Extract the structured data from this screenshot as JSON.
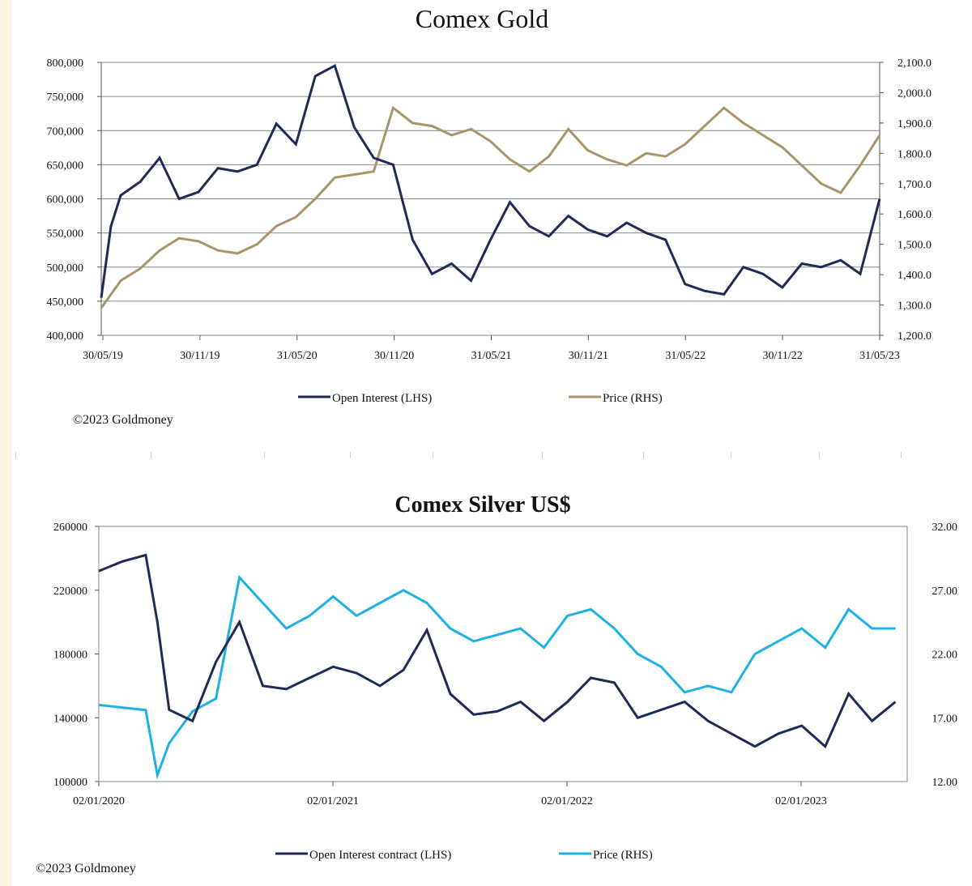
{
  "chart_data": [
    {
      "type": "line",
      "title": "Comex Gold",
      "x_ticks": [
        "30/05/19",
        "30/11/19",
        "31/05/20",
        "30/11/20",
        "31/05/21",
        "30/11/21",
        "31/05/22",
        "30/11/22",
        "31/05/23"
      ],
      "y_left": {
        "ticks": [
          "800,000",
          "750,000",
          "700,000",
          "650,000",
          "600,000",
          "550,000",
          "500,000",
          "450,000",
          "400,000"
        ],
        "ylim": [
          400000,
          800000
        ]
      },
      "y_right": {
        "ticks": [
          "2,100.0",
          "2,000.0",
          "1,900.0",
          "1,800.0",
          "1,700.0",
          "1,600.0",
          "1,500.0",
          "1,400.0",
          "1,300.0",
          "1,200.0"
        ],
        "ylim": [
          1200,
          2100
        ]
      },
      "grid": true,
      "legend_position": "bottom",
      "series": [
        {
          "name": "Open Interest (LHS)",
          "axis": "left",
          "color": "#1f2a55",
          "x": [
            0,
            0.05,
            0.1,
            0.2,
            0.3,
            0.4,
            0.5,
            0.6,
            0.7,
            0.8,
            0.9,
            1.0,
            1.1,
            1.2,
            1.3,
            1.4,
            1.5,
            1.6,
            1.7,
            1.8,
            1.9,
            2.0,
            2.1,
            2.2,
            2.3,
            2.4,
            2.5,
            2.6,
            2.7,
            2.8,
            2.9,
            3.0,
            3.1,
            3.2,
            3.3,
            3.4,
            3.5,
            3.6,
            3.7,
            3.8,
            3.9,
            4.0
          ],
          "values": [
            455000,
            560000,
            605000,
            625000,
            660000,
            600000,
            610000,
            645000,
            640000,
            650000,
            710000,
            680000,
            780000,
            795000,
            705000,
            660000,
            650000,
            540000,
            490000,
            505000,
            480000,
            540000,
            595000,
            560000,
            545000,
            575000,
            555000,
            545000,
            565000,
            550000,
            540000,
            475000,
            465000,
            460000,
            500000,
            490000,
            470000,
            505000,
            500000,
            510000,
            490000,
            600000
          ]
        },
        {
          "name": "Price (RHS)",
          "axis": "right",
          "color": "#a8966a",
          "x": [
            0,
            0.1,
            0.2,
            0.3,
            0.4,
            0.5,
            0.6,
            0.7,
            0.8,
            0.9,
            1.0,
            1.1,
            1.2,
            1.3,
            1.4,
            1.5,
            1.6,
            1.7,
            1.8,
            1.9,
            2.0,
            2.1,
            2.2,
            2.3,
            2.4,
            2.5,
            2.6,
            2.7,
            2.8,
            2.9,
            3.0,
            3.1,
            3.2,
            3.3,
            3.4,
            3.5,
            3.6,
            3.7,
            3.8,
            3.9,
            4.0
          ],
          "values": [
            1290,
            1380,
            1420,
            1480,
            1520,
            1510,
            1480,
            1470,
            1500,
            1560,
            1590,
            1650,
            1720,
            1730,
            1740,
            1950,
            1900,
            1890,
            1860,
            1880,
            1840,
            1780,
            1740,
            1790,
            1880,
            1810,
            1780,
            1760,
            1800,
            1790,
            1830,
            1890,
            1950,
            1900,
            1860,
            1820,
            1760,
            1700,
            1670,
            1760,
            1860
          ]
        }
      ]
    },
    {
      "type": "line",
      "title": "Comex Silver US$",
      "x_ticks": [
        "02/01/2020",
        "02/01/2021",
        "02/01/2022",
        "02/01/2023"
      ],
      "y_left": {
        "ticks": [
          "260000",
          "220000",
          "180000",
          "140000",
          "100000"
        ],
        "ylim": [
          100000,
          260000
        ]
      },
      "y_right": {
        "ticks": [
          "32.00",
          "27.00",
          "22.00",
          "17.00",
          "12.00"
        ],
        "ylim": [
          12,
          32
        ]
      },
      "grid": false,
      "legend_position": "bottom",
      "series": [
        {
          "name": "Open Interest contract (LHS)",
          "axis": "left",
          "color": "#1f2a55",
          "x": [
            0,
            0.1,
            0.2,
            0.25,
            0.3,
            0.4,
            0.5,
            0.6,
            0.7,
            0.8,
            0.9,
            1.0,
            1.1,
            1.2,
            1.3,
            1.4,
            1.5,
            1.6,
            1.7,
            1.8,
            1.9,
            2.0,
            2.1,
            2.2,
            2.3,
            2.4,
            2.5,
            2.6,
            2.7,
            2.8,
            2.9,
            3.0,
            3.1,
            3.2,
            3.3,
            3.4
          ],
          "values": [
            232000,
            238000,
            242000,
            200000,
            145000,
            138000,
            175000,
            200000,
            160000,
            158000,
            165000,
            172000,
            168000,
            160000,
            170000,
            195000,
            155000,
            142000,
            144000,
            150000,
            138000,
            150000,
            165000,
            162000,
            140000,
            145000,
            150000,
            138000,
            130000,
            122000,
            130000,
            135000,
            122000,
            155000,
            138000,
            150000
          ]
        },
        {
          "name": "Price (RHS)",
          "axis": "right",
          "color": "#1fb0e6",
          "x": [
            0,
            0.1,
            0.2,
            0.25,
            0.3,
            0.4,
            0.5,
            0.6,
            0.7,
            0.8,
            0.9,
            1.0,
            1.1,
            1.2,
            1.3,
            1.4,
            1.5,
            1.6,
            1.7,
            1.8,
            1.9,
            2.0,
            2.1,
            2.2,
            2.3,
            2.4,
            2.5,
            2.6,
            2.7,
            2.8,
            2.9,
            3.0,
            3.1,
            3.2,
            3.3,
            3.4
          ],
          "values": [
            18,
            17.8,
            17.6,
            12.5,
            15,
            17.5,
            18.5,
            28,
            26,
            24,
            25,
            26.5,
            25,
            26,
            27,
            26,
            24,
            23,
            23.5,
            24,
            22.5,
            25,
            25.5,
            24,
            22,
            21,
            19,
            19.5,
            19,
            22,
            23,
            24,
            22.5,
            25.5,
            24,
            24
          ]
        }
      ]
    }
  ],
  "copyright_top": "©2023 Goldmoney",
  "copyright_bottom": "©2023 Goldmoney"
}
